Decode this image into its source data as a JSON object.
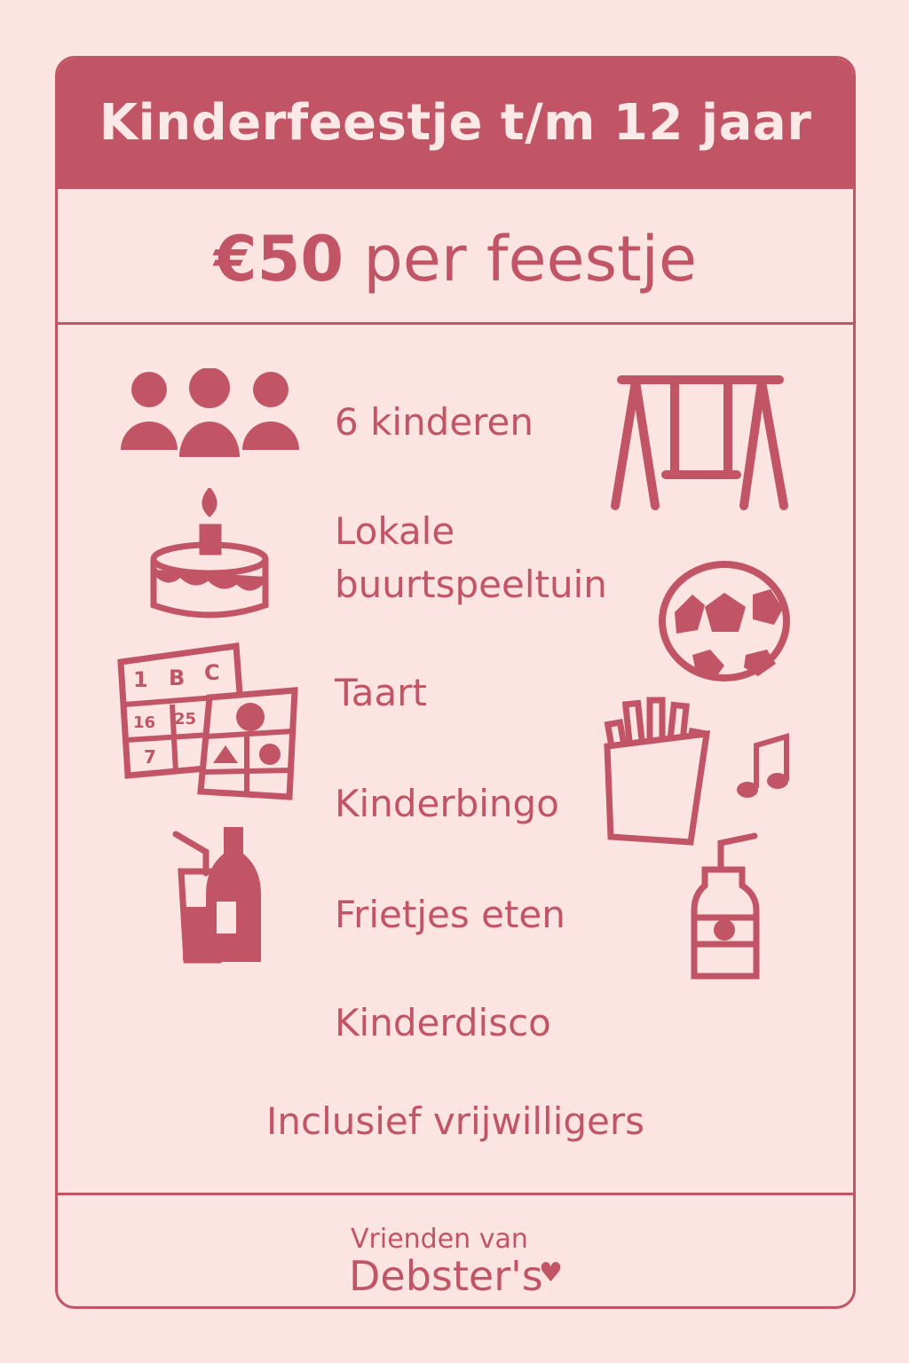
{
  "header": {
    "title": "Kinderfeestje t/m 12 jaar"
  },
  "price": {
    "amount": "€50",
    "suffix": "per feestje"
  },
  "items": [
    "6 kinderen",
    "Lokale",
    "buurtspeeltuin",
    "Taart",
    "Kinderbingo",
    "Frietjes eten",
    "Kinderdisco"
  ],
  "inclusion": "Inclusief vrijwilligers",
  "bingo": {
    "top": [
      "1",
      "B",
      "C"
    ],
    "cells": [
      "16",
      "25",
      "7"
    ]
  },
  "footer": {
    "logo_line1": "Vrienden van",
    "logo_line2": "Debster's",
    "heart": "♥"
  },
  "colors": {
    "background": "#fce4e2",
    "accent": "#c25565"
  },
  "icons": [
    "people-icon",
    "swing-icon",
    "birthday-cake-icon",
    "soccer-ball-icon",
    "bingo-card-icon",
    "fries-icon",
    "music-note-icon",
    "drinks-icon",
    "juice-bottle-icon"
  ]
}
